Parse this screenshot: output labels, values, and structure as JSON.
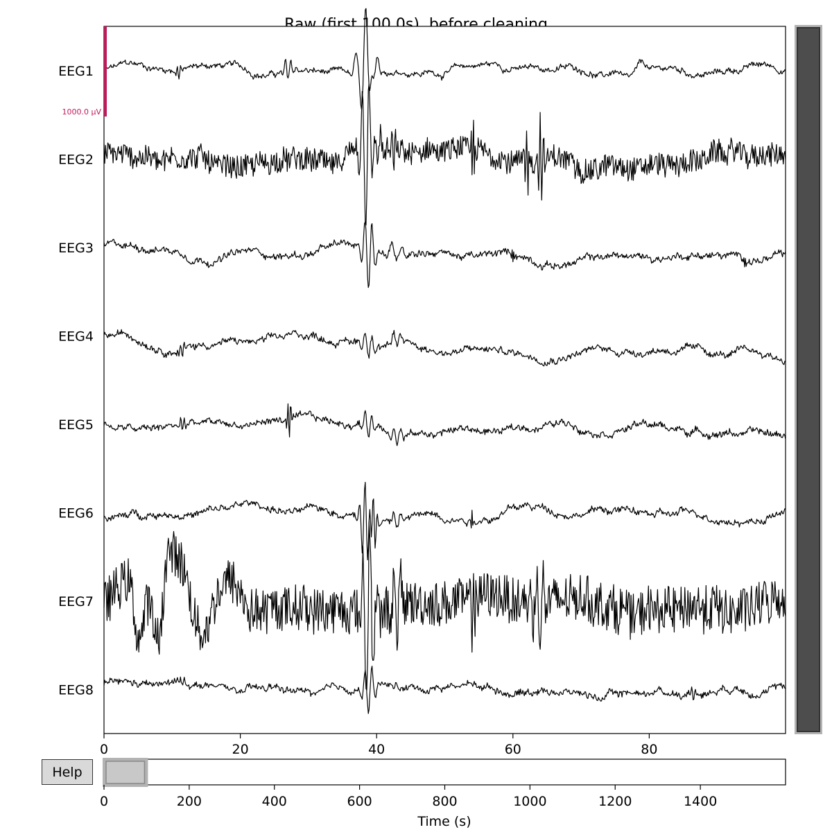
{
  "chart_data": {
    "type": "line",
    "title": "Raw (first 100.0s), before cleaning",
    "xlabel": "",
    "xlim": [
      0,
      100
    ],
    "x_ticks": [
      "0",
      "20",
      "40",
      "60",
      "80"
    ],
    "channels": [
      {
        "name": "EEG1",
        "amp": 1.0,
        "hf": 0.15,
        "drift": 0,
        "events": [
          {
            "t": 38.5,
            "a": 8,
            "w": 1.5
          },
          {
            "t": 38.8,
            "a": -5,
            "w": 1
          },
          {
            "t": 11,
            "a": -1.5,
            "w": 0.5
          },
          {
            "t": 27,
            "a": -2,
            "w": 0.8
          },
          {
            "t": 77,
            "a": -1.2,
            "w": 4
          }
        ]
      },
      {
        "name": "EEG2",
        "amp": 1.0,
        "hf": 1.0,
        "drift": 0,
        "events": [
          {
            "t": 38.5,
            "a": -10,
            "w": 1
          },
          {
            "t": 38.8,
            "a": 10,
            "w": 1
          },
          {
            "t": 40,
            "a": -4,
            "w": 1
          },
          {
            "t": 42.5,
            "a": -3,
            "w": 0.5
          },
          {
            "t": 54.2,
            "a": 7,
            "w": 0.3
          },
          {
            "t": 62,
            "a": 6,
            "w": 0.4
          },
          {
            "t": 64,
            "a": 8,
            "w": 0.5
          }
        ]
      },
      {
        "name": "EEG3",
        "amp": 1.0,
        "hf": 0.2,
        "drift": -2.5,
        "events": [
          {
            "t": 38.8,
            "a": -7,
            "w": 1
          },
          {
            "t": 43,
            "a": -1.5,
            "w": 1.5
          },
          {
            "t": 60,
            "a": -1.2,
            "w": 0.2
          },
          {
            "t": 94,
            "a": -1.2,
            "w": 0.2
          }
        ]
      },
      {
        "name": "EEG4",
        "amp": 1.0,
        "hf": 0.2,
        "drift": -4,
        "events": [
          {
            "t": 38.8,
            "a": -2.5,
            "w": 1
          },
          {
            "t": 43,
            "a": -1.5,
            "w": 1
          },
          {
            "t": 11.5,
            "a": -1.5,
            "w": 0.5
          }
        ]
      },
      {
        "name": "EEG5",
        "amp": 1.0,
        "hf": 0.2,
        "drift": -1,
        "events": [
          {
            "t": 27.2,
            "a": -4,
            "w": 0.4
          },
          {
            "t": 38.8,
            "a": -2.5,
            "w": 1
          },
          {
            "t": 43,
            "a": -1.5,
            "w": 1
          },
          {
            "t": 11.5,
            "a": -1.5,
            "w": 0.5
          }
        ]
      },
      {
        "name": "EEG6",
        "amp": 1.0,
        "hf": 0.2,
        "drift": 0,
        "events": [
          {
            "t": 38.3,
            "a": 8,
            "w": 0.8
          },
          {
            "t": 39.5,
            "a": 6,
            "w": 0.6
          },
          {
            "t": 54,
            "a": 2,
            "w": 0.3
          },
          {
            "t": 43,
            "a": -1.5,
            "w": 1
          }
        ]
      },
      {
        "name": "EEG7",
        "amp": 1.0,
        "hf": 2.0,
        "drift": -1,
        "events": [
          {
            "t": 6.5,
            "a": 6,
            "w": 3
          },
          {
            "t": 10.5,
            "a": 9,
            "w": 8
          },
          {
            "t": 38.5,
            "a": -10,
            "w": 1
          },
          {
            "t": 39,
            "a": 10,
            "w": 1
          },
          {
            "t": 43,
            "a": -5,
            "w": 1
          },
          {
            "t": 54.2,
            "a": 7,
            "w": 0.4
          },
          {
            "t": 62.5,
            "a": 6,
            "w": 0.8
          },
          {
            "t": 64,
            "a": -6,
            "w": 0.8
          }
        ]
      },
      {
        "name": "EEG8",
        "amp": 1.0,
        "hf": 0.2,
        "drift": 0,
        "events": [
          {
            "t": 38.8,
            "a": -5,
            "w": 1
          },
          {
            "t": 86.5,
            "a": -1.2,
            "w": 0.5
          },
          {
            "t": 11.5,
            "a": -1,
            "w": 0.5
          }
        ]
      }
    ],
    "scale_bar_label": "1000.0 µV",
    "overview": {
      "xlabel": "Time (s)",
      "xlim": [
        0,
        1600
      ],
      "x_ticks": [
        "0",
        "200",
        "400",
        "600",
        "800",
        "1000",
        "1200",
        "1400"
      ],
      "visible_window": [
        0,
        100
      ]
    }
  },
  "help_label": "Help",
  "colors": {
    "trace": "#000000",
    "scale_bar": "#c2185b",
    "scrollbar": "#4d4d4d",
    "selection": "#c8c8c8"
  }
}
